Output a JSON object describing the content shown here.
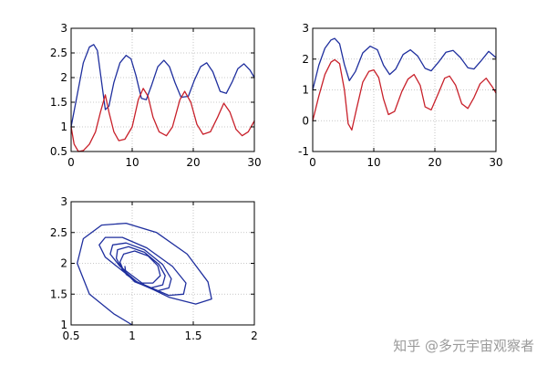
{
  "figure": {
    "background": "#ffffff",
    "grid_color": "#b8b8b8",
    "axis_color": "#000000"
  },
  "watermark": "知乎 @多元宇宙观察者",
  "chart_data": [
    {
      "id": "plot-1",
      "type": "line",
      "xlim": [
        0,
        30
      ],
      "ylim": [
        0.5,
        3
      ],
      "xticks": [
        0,
        10,
        20,
        30
      ],
      "yticks": [
        0.5,
        1,
        1.5,
        2,
        2.5,
        3
      ],
      "xtick_labels": [
        "0",
        "10",
        "20",
        "30"
      ],
      "ytick_labels": [
        "0.5",
        "1",
        "1.5",
        "2",
        "2.5",
        "3"
      ],
      "grid": true,
      "series": [
        {
          "color": "#1f2f9e",
          "x": [
            0,
            1,
            2,
            3,
            3.7,
            4.3,
            5,
            5.6,
            6.2,
            7,
            8,
            9,
            9.8,
            10.6,
            11.5,
            12.3,
            13.2,
            14.2,
            15.2,
            16.1,
            17,
            18,
            19.2,
            20.2,
            21.2,
            22.2,
            23.2,
            24.4,
            25.4,
            26.4,
            27.3,
            28.3,
            29.3,
            30
          ],
          "y": [
            1.0,
            1.65,
            2.3,
            2.62,
            2.67,
            2.55,
            1.9,
            1.35,
            1.42,
            1.9,
            2.3,
            2.45,
            2.38,
            2.05,
            1.58,
            1.55,
            1.85,
            2.22,
            2.35,
            2.22,
            1.9,
            1.6,
            1.62,
            1.95,
            2.22,
            2.3,
            2.12,
            1.72,
            1.68,
            1.92,
            2.18,
            2.28,
            2.15,
            2.0
          ]
        },
        {
          "color": "#c8202a",
          "x": [
            0,
            0.5,
            1.2,
            2,
            3,
            4,
            4.8,
            5.6,
            6.2,
            7,
            7.8,
            8.8,
            10,
            11,
            11.8,
            12.6,
            13.4,
            14.4,
            15.6,
            16.6,
            17.8,
            18.6,
            19.6,
            20.6,
            21.6,
            22.8,
            24,
            25,
            26,
            27,
            28,
            29,
            30
          ],
          "y": [
            1.0,
            0.65,
            0.5,
            0.52,
            0.65,
            0.9,
            1.3,
            1.65,
            1.3,
            0.9,
            0.72,
            0.75,
            1.0,
            1.55,
            1.78,
            1.62,
            1.2,
            0.9,
            0.82,
            1.0,
            1.55,
            1.72,
            1.5,
            1.05,
            0.85,
            0.9,
            1.2,
            1.48,
            1.3,
            0.95,
            0.82,
            0.9,
            1.12
          ]
        }
      ]
    },
    {
      "id": "plot-2",
      "type": "line",
      "xlim": [
        0,
        30
      ],
      "ylim": [
        -1,
        3
      ],
      "xticks": [
        0,
        10,
        20,
        30
      ],
      "yticks": [
        -1,
        0,
        1,
        2,
        3
      ],
      "xtick_labels": [
        "0",
        "10",
        "20",
        "30"
      ],
      "ytick_labels": [
        "-1",
        "0",
        "1",
        "2",
        "3"
      ],
      "grid": true,
      "series": [
        {
          "color": "#1f2f9e",
          "x": [
            0,
            1,
            2,
            3,
            3.6,
            4.4,
            5.2,
            6,
            7,
            8.2,
            9.4,
            10.6,
            11.6,
            12.6,
            13.6,
            14.8,
            16,
            17.2,
            18.4,
            19.4,
            20.6,
            21.8,
            23,
            24.2,
            25.4,
            26.4,
            27.6,
            28.8,
            30
          ],
          "y": [
            1.0,
            1.8,
            2.35,
            2.62,
            2.67,
            2.5,
            1.82,
            1.3,
            1.6,
            2.2,
            2.42,
            2.3,
            1.8,
            1.5,
            1.68,
            2.15,
            2.3,
            2.1,
            1.7,
            1.62,
            1.9,
            2.22,
            2.28,
            2.05,
            1.72,
            1.68,
            1.95,
            2.25,
            2.05
          ]
        },
        {
          "color": "#c8202a",
          "x": [
            0,
            1,
            2,
            3,
            3.6,
            4.4,
            5.2,
            5.8,
            6.4,
            7.2,
            8.2,
            9.2,
            10,
            10.8,
            11.6,
            12.4,
            13.4,
            14.6,
            15.6,
            16.6,
            17.6,
            18.4,
            19.4,
            20.6,
            21.6,
            22.4,
            23.4,
            24.4,
            25.4,
            26.4,
            27.4,
            28.4,
            29.4,
            30
          ],
          "y": [
            0.0,
            0.8,
            1.5,
            1.9,
            1.98,
            1.85,
            1.0,
            -0.1,
            -0.3,
            0.4,
            1.25,
            1.6,
            1.65,
            1.4,
            0.7,
            0.2,
            0.3,
            0.95,
            1.35,
            1.5,
            1.15,
            0.45,
            0.35,
            0.9,
            1.38,
            1.45,
            1.15,
            0.55,
            0.4,
            0.75,
            1.2,
            1.38,
            1.1,
            0.9
          ]
        }
      ]
    },
    {
      "id": "plot-3",
      "type": "line",
      "xlim": [
        0.5,
        2
      ],
      "ylim": [
        1,
        3
      ],
      "xticks": [
        0.5,
        1,
        1.5,
        2
      ],
      "yticks": [
        1,
        1.5,
        2,
        2.5,
        3
      ],
      "xtick_labels": [
        "0.5",
        "1",
        "1.5",
        "2"
      ],
      "ytick_labels": [
        "1",
        "1.5",
        "2",
        "2.5",
        "3"
      ],
      "grid": true,
      "series": [
        {
          "color": "#1f2f9e",
          "x": [
            1.0,
            0.85,
            0.65,
            0.55,
            0.6,
            0.75,
            0.95,
            1.2,
            1.45,
            1.62,
            1.65,
            1.52,
            1.3,
            1.02,
            0.78,
            0.73,
            0.78,
            0.92,
            1.12,
            1.33,
            1.44,
            1.42,
            1.3,
            1.1,
            0.9,
            0.82,
            0.84,
            0.95,
            1.1,
            1.25,
            1.32,
            1.3,
            1.2,
            1.05,
            0.92,
            0.87,
            0.88,
            0.97,
            1.1,
            1.22,
            1.27,
            1.25,
            1.15,
            1.02,
            0.93,
            0.9,
            0.93,
            1.02,
            1.13,
            1.21,
            1.23,
            1.17,
            1.05,
            0.95,
            0.94
          ],
          "y": [
            1.0,
            1.18,
            1.5,
            2.0,
            2.4,
            2.62,
            2.65,
            2.5,
            2.15,
            1.7,
            1.42,
            1.34,
            1.45,
            1.72,
            2.1,
            2.3,
            2.42,
            2.42,
            2.25,
            1.95,
            1.68,
            1.5,
            1.48,
            1.65,
            1.95,
            2.15,
            2.3,
            2.33,
            2.22,
            1.98,
            1.75,
            1.6,
            1.55,
            1.68,
            1.9,
            2.08,
            2.22,
            2.27,
            2.18,
            1.98,
            1.8,
            1.65,
            1.6,
            1.7,
            1.88,
            2.02,
            2.15,
            2.2,
            2.12,
            1.96,
            1.8,
            1.68,
            1.68,
            1.82,
            1.95
          ]
        }
      ]
    }
  ]
}
